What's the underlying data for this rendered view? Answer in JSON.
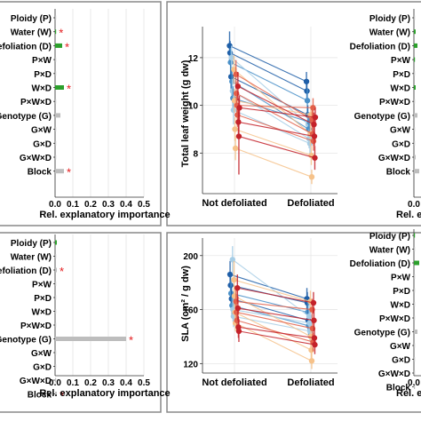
{
  "colors": {
    "green": "#2ca02c",
    "gray": "#bdbdbd",
    "star": "#e41a1c",
    "panel_border": "#888888",
    "blue_dark": "#1f5fa8",
    "blue_mid": "#4a90c8",
    "blue_light": "#a6cde6",
    "orange_light": "#f6c28a",
    "red_mid": "#e2604a",
    "red_dark": "#c4222a"
  },
  "importance_axis": {
    "xlabel": "Rel. explanatory importance",
    "ticks": [
      "0.0",
      "0.1",
      "0.2",
      "0.3",
      "0.4",
      "0.5"
    ],
    "xlim": [
      0,
      0.5
    ],
    "terms": [
      "Ploidy (P)",
      "Water (W)",
      "Defoliation (D)",
      "P×W",
      "P×D",
      "W×D",
      "P×W×D",
      "Genotype (G)",
      "G×W",
      "G×D",
      "G×W×D",
      "Block"
    ],
    "terms_cut": [
      "Ploidy (P)",
      "Water (W)",
      "efoliation (D)",
      "P×W",
      "P×D",
      "W×D",
      "P×W×D",
      "Genotype (G)",
      "G×W",
      "G×D",
      "G×W×D",
      "Block"
    ],
    "right_xlabel_cut": "Rel. ex",
    "right_tick0": "0.0"
  },
  "star": "*",
  "chart_data": [
    {
      "type": "bar",
      "panel": "top-left",
      "xlabel": "Rel. explanatory importance",
      "categories": [
        "Ploidy (P)",
        "Water (W)",
        "Defoliation (D)",
        "P×W",
        "P×D",
        "W×D",
        "P×W×D",
        "Genotype (G)",
        "G×W",
        "G×D",
        "G×W×D",
        "Block"
      ],
      "values": [
        0.003,
        0.004,
        0.04,
        0.003,
        0.003,
        0.05,
        0.003,
        0.03,
        0.003,
        0.003,
        0.004,
        0.05
      ],
      "bar_colors": [
        "gray",
        "green",
        "green",
        "gray",
        "gray",
        "green",
        "gray",
        "gray",
        "gray",
        "gray",
        "gray",
        "gray"
      ],
      "significant": [
        false,
        true,
        true,
        false,
        false,
        true,
        false,
        false,
        false,
        false,
        false,
        true
      ],
      "xlim": [
        0,
        0.5
      ]
    },
    {
      "type": "bar",
      "panel": "bottom-left",
      "xlabel": "Rel. explanatory importance",
      "categories": [
        "Ploidy (P)",
        "Water (W)",
        "Defoliation (D)",
        "P×W",
        "P×D",
        "W×D",
        "P×W×D",
        "Genotype (G)",
        "G×W",
        "G×D",
        "G×W×D",
        "Block"
      ],
      "values": [
        0.01,
        0.003,
        0.01,
        0.003,
        0.003,
        0.003,
        0.003,
        0.4,
        0.003,
        0.003,
        0.003,
        0.01
      ],
      "bar_colors": [
        "green",
        "gray",
        "gray",
        "gray",
        "gray",
        "gray",
        "gray",
        "gray",
        "gray",
        "gray",
        "gray",
        "gray"
      ],
      "significant": [
        false,
        false,
        true,
        false,
        false,
        false,
        false,
        true,
        false,
        false,
        false,
        true
      ],
      "xlim": [
        0,
        0.5
      ]
    },
    {
      "type": "line",
      "panel": "top-middle",
      "ylabel": "Total leaf weight (g dw)",
      "categories": [
        "Not defoliated",
        "Defoliated"
      ],
      "yticks": [
        "8",
        "10",
        "12"
      ],
      "ylim": [
        6.3,
        13.3
      ],
      "lines": [
        {
          "color": "blue_dark",
          "values": [
            12.5,
            11.0
          ],
          "err": [
            0.6,
            0.4
          ]
        },
        {
          "color": "blue_dark",
          "values": [
            12.2,
            10.6
          ],
          "err": [
            0.5,
            0.5
          ]
        },
        {
          "color": "blue_mid",
          "values": [
            11.8,
            10.2
          ],
          "err": [
            0.6,
            0.5
          ]
        },
        {
          "color": "blue_dark",
          "values": [
            11.2,
            9.6
          ],
          "err": [
            0.5,
            0.4
          ]
        },
        {
          "color": "blue_light",
          "values": [
            12.0,
            9.2
          ],
          "err": [
            0.5,
            0.5
          ]
        },
        {
          "color": "blue_mid",
          "values": [
            11.0,
            9.0
          ],
          "err": [
            0.6,
            0.5
          ]
        },
        {
          "color": "blue_light",
          "values": [
            10.6,
            8.6
          ],
          "err": [
            0.5,
            0.4
          ]
        },
        {
          "color": "blue_mid",
          "values": [
            10.3,
            9.3
          ],
          "err": [
            0.5,
            0.4
          ]
        },
        {
          "color": "blue_light",
          "values": [
            9.8,
            8.4
          ],
          "err": [
            0.6,
            0.5
          ]
        },
        {
          "color": "orange_light",
          "values": [
            11.5,
            8.8
          ],
          "err": [
            0.6,
            0.5
          ]
        },
        {
          "color": "orange_light",
          "values": [
            10.2,
            9.6
          ],
          "err": [
            0.5,
            0.4
          ]
        },
        {
          "color": "orange_light",
          "values": [
            9.0,
            7.9
          ],
          "err": [
            0.5,
            0.4
          ]
        },
        {
          "color": "orange_light",
          "values": [
            8.2,
            7.0
          ],
          "err": [
            0.5,
            0.3
          ]
        },
        {
          "color": "red_mid",
          "values": [
            11.3,
            9.4
          ],
          "err": [
            0.6,
            0.5
          ]
        },
        {
          "color": "red_mid",
          "values": [
            10.5,
            8.8
          ],
          "err": [
            0.5,
            0.4
          ]
        },
        {
          "color": "red_mid",
          "values": [
            10.0,
            9.9
          ],
          "err": [
            0.5,
            0.4
          ]
        },
        {
          "color": "red_mid",
          "values": [
            9.6,
            8.5
          ],
          "err": [
            0.5,
            0.4
          ]
        },
        {
          "color": "red_dark",
          "values": [
            10.8,
            9.2
          ],
          "err": [
            0.6,
            0.5
          ]
        },
        {
          "color": "red_dark",
          "values": [
            9.3,
            8.7
          ],
          "err": [
            0.5,
            0.4
          ]
        },
        {
          "color": "red_dark",
          "values": [
            8.7,
            7.8
          ],
          "err": [
            1.6,
            0.5
          ]
        },
        {
          "color": "red_dark",
          "values": [
            9.9,
            9.5
          ],
          "err": [
            0.5,
            0.4
          ]
        }
      ]
    },
    {
      "type": "line",
      "panel": "bottom-middle",
      "ylabel": "SLA (cm² / g dw)",
      "categories": [
        "Not defoliated",
        "Defoliated"
      ],
      "yticks": [
        "120",
        "160",
        "200"
      ],
      "ylim": [
        113,
        213
      ],
      "lines": [
        {
          "color": "blue_dark",
          "values": [
            186,
            168
          ],
          "err": [
            10,
            8
          ]
        },
        {
          "color": "blue_dark",
          "values": [
            178,
            165
          ],
          "err": [
            9,
            8
          ]
        },
        {
          "color": "blue_mid",
          "values": [
            172,
            158
          ],
          "err": [
            10,
            8
          ]
        },
        {
          "color": "blue_dark",
          "values": [
            168,
            152
          ],
          "err": [
            9,
            8
          ]
        },
        {
          "color": "blue_mid",
          "values": [
            163,
            148
          ],
          "err": [
            8,
            8
          ]
        },
        {
          "color": "blue_light",
          "values": [
            197,
            155
          ],
          "err": [
            10,
            12
          ]
        },
        {
          "color": "blue_light",
          "values": [
            160,
            150
          ],
          "err": [
            9,
            8
          ]
        },
        {
          "color": "blue_light",
          "values": [
            155,
            144
          ],
          "err": [
            8,
            7
          ]
        },
        {
          "color": "orange_light",
          "values": [
            182,
            166
          ],
          "err": [
            14,
            8
          ]
        },
        {
          "color": "orange_light",
          "values": [
            170,
            140
          ],
          "err": [
            8,
            8
          ]
        },
        {
          "color": "orange_light",
          "values": [
            158,
            130
          ],
          "err": [
            8,
            6
          ]
        },
        {
          "color": "orange_light",
          "values": [
            150,
            122
          ],
          "err": [
            6,
            6
          ]
        },
        {
          "color": "red_mid",
          "values": [
            166,
            160
          ],
          "err": [
            9,
            8
          ]
        },
        {
          "color": "red_mid",
          "values": [
            158,
            146
          ],
          "err": [
            8,
            7
          ]
        },
        {
          "color": "red_mid",
          "values": [
            152,
            136
          ],
          "err": [
            8,
            7
          ]
        },
        {
          "color": "red_dark",
          "values": [
            176,
            165
          ],
          "err": [
            10,
            8
          ]
        },
        {
          "color": "red_dark",
          "values": [
            161,
            152
          ],
          "err": [
            9,
            8
          ]
        },
        {
          "color": "red_dark",
          "values": [
            147,
            139
          ],
          "err": [
            8,
            7
          ]
        },
        {
          "color": "red_dark",
          "values": [
            144,
            134
          ],
          "err": [
            8,
            7
          ]
        }
      ]
    },
    {
      "type": "bar",
      "panel": "top-right",
      "categories": [
        "Ploidy (P)",
        "Water (W)",
        "Defoliation (D)",
        "P×W",
        "P×D",
        "W×D",
        "P×W×D",
        "Genotype (G)",
        "G×W",
        "G×D",
        "G×W×D",
        "Block"
      ],
      "values": [
        0.003,
        0.01,
        0.02,
        0.003,
        0.003,
        0.01,
        0.003,
        0.02,
        0.003,
        0.003,
        0.01,
        0.03
      ],
      "bar_colors": [
        "gray",
        "green",
        "green",
        "green",
        "gray",
        "green",
        "gray",
        "gray",
        "gray",
        "gray",
        "gray",
        "gray"
      ],
      "significant": [
        false,
        false,
        false,
        false,
        false,
        false,
        false,
        false,
        false,
        false,
        false,
        false
      ],
      "xlim": [
        0,
        0.5
      ]
    },
    {
      "type": "bar",
      "panel": "bottom-right",
      "categories": [
        "Ploidy (P)",
        "Water (W)",
        "Defoliation (D)",
        "P×W",
        "P×D",
        "W×D",
        "P×W×D",
        "Genotype (G)",
        "G×W",
        "G×D",
        "G×W×D",
        "Block"
      ],
      "values": [
        0.005,
        0.003,
        0.03,
        0.003,
        0.003,
        0.003,
        0.003,
        0.02,
        0.003,
        0.003,
        0.003,
        0.003
      ],
      "bar_colors": [
        "green",
        "gray",
        "green",
        "gray",
        "gray",
        "gray",
        "gray",
        "gray",
        "gray",
        "gray",
        "gray",
        "gray"
      ],
      "significant": [
        false,
        false,
        false,
        false,
        false,
        false,
        false,
        false,
        false,
        false,
        false,
        false
      ],
      "xlim": [
        0,
        0.5
      ]
    }
  ]
}
